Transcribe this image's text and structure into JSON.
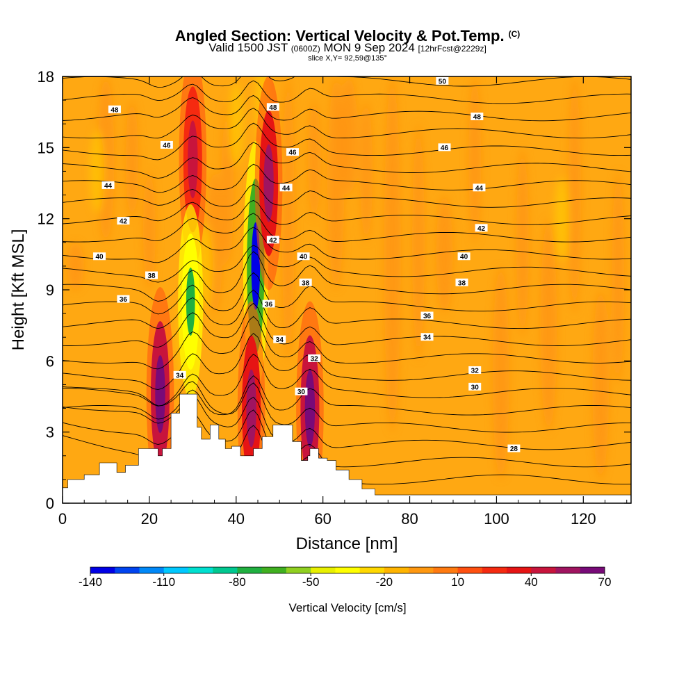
{
  "header": {
    "title": "Angled Section: Vertical Velocity & Pot.Temp.",
    "title_mark": "(C)",
    "subtitle_main_a": "Valid 1500 JST",
    "subtitle_small_a": "(0600Z)",
    "subtitle_main_b": "MON 9 Sep 2024",
    "subtitle_small_b": "[12hrFcst@2229z]",
    "slice": "slice X,Y= 92,59@135°"
  },
  "chart_data": {
    "type": "heatmap",
    "title": "Angled Section: Vertical Velocity & Pot.Temp.",
    "xlabel": "Distance [nm]",
    "ylabel": "Height [Kft MSL]",
    "xlim": [
      0,
      131
    ],
    "ylim": [
      0,
      18
    ],
    "x_ticks": [
      0,
      20,
      40,
      60,
      80,
      100,
      120
    ],
    "y_ticks": [
      0,
      3,
      6,
      9,
      12,
      15,
      18
    ],
    "colorbar": {
      "label": "Vertical Velocity [cm/s]",
      "min": -140,
      "max": 70,
      "step": 10,
      "tick_labels": [
        "-140",
        "-110",
        "-80",
        "-50",
        "-20",
        "10",
        "40",
        "70"
      ],
      "colors": [
        "#0000e6",
        "#0044f0",
        "#0088f8",
        "#00c8ff",
        "#00e0d0",
        "#00c890",
        "#20b040",
        "#40b020",
        "#90d020",
        "#e8f000",
        "#ffff00",
        "#ffd800",
        "#ffb400",
        "#ff9810",
        "#ff7a10",
        "#ff5010",
        "#f52a10",
        "#e61414",
        "#c8143c",
        "#a01460",
        "#780a78"
      ]
    },
    "background_value_range": [
      0,
      20
    ],
    "features": [
      {
        "name": "updraft",
        "x": 22.5,
        "height": 4.6,
        "peak_cm_s": 70
      },
      {
        "name": "updraft",
        "x": 30,
        "height": 14.5,
        "peak_cm_s": 40
      },
      {
        "name": "downdraft",
        "x": 29.5,
        "height": 8.5,
        "peak_cm_s": -80
      },
      {
        "name": "downdraft",
        "x": 44.5,
        "height": 10.0,
        "peak_cm_s": -140
      },
      {
        "name": "updraft",
        "x": 43.5,
        "height": 4.0,
        "peak_cm_s": 50
      },
      {
        "name": "updraft",
        "x": 47.5,
        "height": 13.5,
        "peak_cm_s": 50
      },
      {
        "name": "updraft",
        "x": 57,
        "height": 4.0,
        "peak_cm_s": 60
      }
    ],
    "terrain": [
      [
        0,
        0.65
      ],
      [
        1.2,
        1.0
      ],
      [
        5,
        1.2
      ],
      [
        8.5,
        1.7
      ],
      [
        12.5,
        1.3
      ],
      [
        14.5,
        1.6
      ],
      [
        17.5,
        2.3
      ],
      [
        22,
        2.0
      ],
      [
        23,
        2.3
      ],
      [
        25,
        3.8
      ],
      [
        27,
        4.6
      ],
      [
        29.5,
        4.6
      ],
      [
        31,
        3.2
      ],
      [
        32,
        2.7
      ],
      [
        34,
        3.3
      ],
      [
        36,
        2.7
      ],
      [
        37.5,
        2.3
      ],
      [
        39,
        2.4
      ],
      [
        41,
        2.0
      ],
      [
        44,
        2.3
      ],
      [
        46,
        2.8
      ],
      [
        48.5,
        3.3
      ],
      [
        51,
        3.3
      ],
      [
        53,
        2.6
      ],
      [
        55,
        1.8
      ],
      [
        56.5,
        2.0
      ],
      [
        57,
        2.3
      ],
      [
        59,
        1.9
      ],
      [
        61,
        1.8
      ],
      [
        63,
        1.4
      ],
      [
        66,
        1.0
      ],
      [
        69,
        0.6
      ],
      [
        72,
        0.35
      ],
      [
        131,
        0.35
      ]
    ],
    "pot_temp_contours": [
      {
        "level": 28,
        "label_x": 104,
        "label_y": 2.3
      },
      {
        "level": 30,
        "label_x": 55,
        "label_y": 4.7,
        "label_x2": 95,
        "label_y2": 4.9
      },
      {
        "level": 32,
        "label_x": 58,
        "label_y": 6.1,
        "label_x2": 95,
        "label_y2": 5.6
      },
      {
        "level": 34,
        "label_x": 27,
        "label_y": 5.4,
        "label_x2": 50,
        "label_y2": 6.9,
        "label_x3": 84,
        "label_y3": 7.0
      },
      {
        "level": 36,
        "label_x": 14,
        "label_y": 8.6,
        "label_x2": 47.5,
        "label_y2": 8.4,
        "label_x3": 84,
        "label_y3": 7.9
      },
      {
        "level": 38,
        "label_x": 20.5,
        "label_y": 9.6,
        "label_x2": 56,
        "label_y2": 9.3,
        "label_x3": 92,
        "label_y3": 9.3
      },
      {
        "level": 40,
        "label_x": 8.5,
        "label_y": 10.4,
        "label_x2": 55.5,
        "label_y2": 10.4,
        "label_x3": 92.5,
        "label_y3": 10.4
      },
      {
        "level": 42,
        "label_x": 14,
        "label_y": 11.9,
        "label_x2": 48.5,
        "label_y2": 11.1,
        "label_x3": 96.5,
        "label_y3": 11.6
      },
      {
        "level": 44,
        "label_x": 10.5,
        "label_y": 13.4,
        "label_x2": 51.5,
        "label_y2": 13.3,
        "label_x3": 96,
        "label_y3": 13.3
      },
      {
        "level": 46,
        "label_x": 24,
        "label_y": 15.1,
        "label_x2": 53,
        "label_y2": 14.8,
        "label_x3": 88,
        "label_y3": 15.0
      },
      {
        "level": 48,
        "label_x": 12,
        "label_y": 16.6,
        "label_x2": 48.5,
        "label_y2": 16.7,
        "label_x3": 95.5,
        "label_y3": 16.3
      },
      {
        "level": 50,
        "label_x": 87.5,
        "label_y": 17.8
      }
    ]
  }
}
